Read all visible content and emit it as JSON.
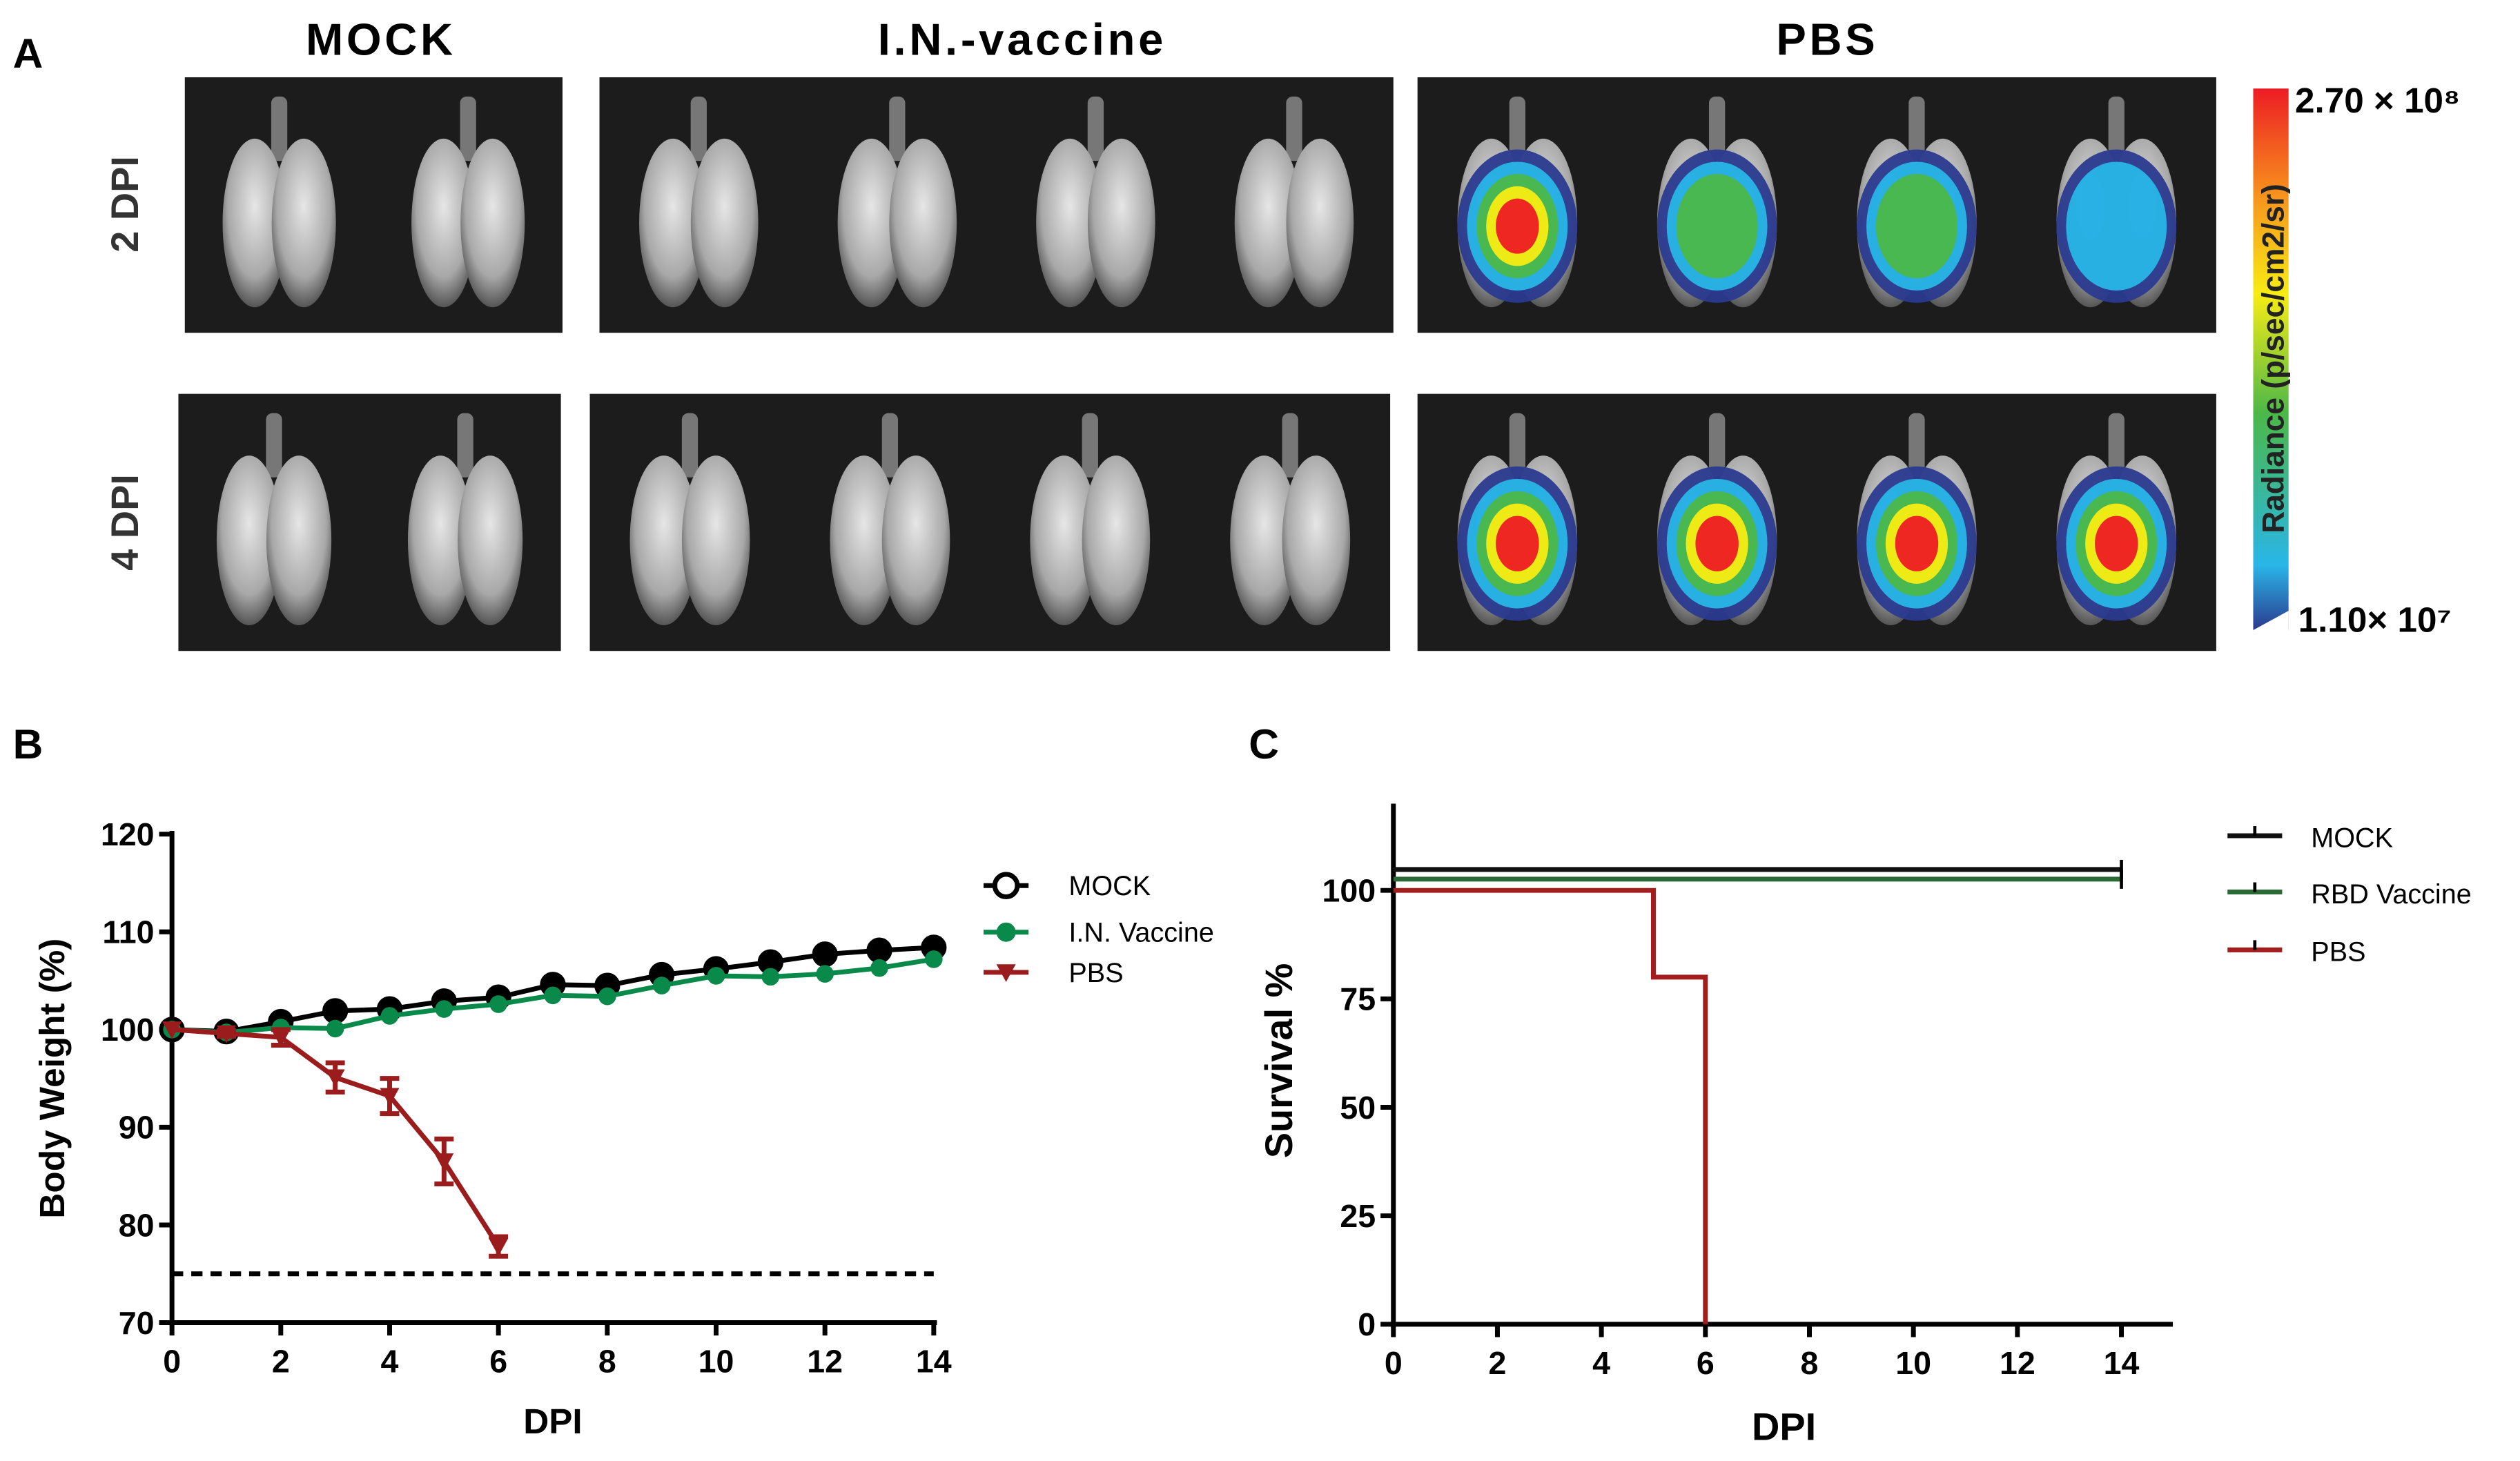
{
  "panel_a": {
    "label": "A",
    "columns": [
      "MOCK",
      "I.N.-vaccine",
      "PBS"
    ],
    "rows": [
      "2 DPI",
      "4 DPI"
    ],
    "colorbar": {
      "label": "Radiance (p/sec/cm2/sr)",
      "max_label": "2.70 × 10⁸",
      "min_label": "1.10× 10⁷",
      "colors": [
        "#2b3a8f",
        "#29b6e8",
        "#4cb848",
        "#f7ec13",
        "#f7941d",
        "#ed1c24"
      ]
    },
    "signal_levels": {
      "2 DPI": {
        "MOCK": [
          0,
          0
        ],
        "I.N.-vaccine": [
          0,
          0,
          0,
          0
        ],
        "PBS": [
          1.0,
          0.55,
          0.4,
          0.35
        ]
      },
      "4 DPI": {
        "MOCK": [
          0,
          0
        ],
        "I.N.-vaccine": [
          0,
          0,
          0,
          0
        ],
        "PBS": [
          0.95,
          1.0,
          0.9,
          0.9
        ]
      }
    }
  },
  "chart_data": [
    {
      "panel_label": "B",
      "type": "line",
      "xlabel": "DPI",
      "ylabel": "Body Weight (%)",
      "xlim": [
        0,
        14
      ],
      "ylim": [
        70,
        120
      ],
      "xticks": [
        0,
        2,
        4,
        6,
        8,
        10,
        12,
        14
      ],
      "yticks": [
        70,
        80,
        90,
        100,
        110,
        120
      ],
      "grid": false,
      "legend_position": "top-right outside",
      "threshold": {
        "y": 75,
        "x": [
          0,
          14
        ],
        "style": "dashed"
      },
      "series": [
        {
          "name": "MOCK",
          "color": "#000000",
          "marker": "open-circle",
          "x": [
            0,
            1,
            2,
            3,
            4,
            5,
            6,
            7,
            8,
            9,
            10,
            11,
            12,
            13,
            14
          ],
          "y": [
            100,
            99.8,
            100.8,
            101.9,
            102.1,
            102.9,
            103.3,
            104.6,
            104.5,
            105.6,
            106.2,
            106.9,
            107.7,
            108.1,
            108.4
          ]
        },
        {
          "name": "I.N. Vaccine",
          "color": "#0a8a4a",
          "marker": "filled-circle",
          "x": [
            0,
            1,
            2,
            3,
            4,
            5,
            6,
            7,
            8,
            9,
            10,
            11,
            12,
            13,
            14
          ],
          "y": [
            100,
            99.7,
            100.2,
            100.1,
            101.4,
            102.1,
            102.6,
            103.5,
            103.4,
            104.5,
            105.5,
            105.4,
            105.7,
            106.3,
            107.2
          ]
        },
        {
          "name": "PBS",
          "color": "#9b1c1c",
          "marker": "down-triangle",
          "x": [
            0,
            1,
            2,
            3,
            4,
            5,
            6
          ],
          "y": [
            100,
            99.6,
            99.2,
            95.1,
            93.2,
            86.5,
            77.8
          ],
          "error": [
            0,
            0.3,
            0.8,
            1.5,
            1.8,
            2.3,
            1.0
          ]
        }
      ]
    },
    {
      "panel_label": "C",
      "type": "line",
      "subtype": "survival-step",
      "xlabel": "DPI",
      "ylabel": "Survival %",
      "xlim": [
        0,
        15
      ],
      "ylim": [
        0,
        120
      ],
      "xticks": [
        0,
        2,
        4,
        6,
        8,
        10,
        12,
        14
      ],
      "yticks": [
        0,
        25,
        50,
        75,
        100
      ],
      "grid": false,
      "legend_position": "top-right outside",
      "series": [
        {
          "name": "MOCK",
          "color": "#111111",
          "x": [
            0,
            14
          ],
          "y": [
            100,
            100
          ]
        },
        {
          "name": "RBD Vaccine",
          "color": "#2a6a35",
          "x": [
            0,
            14
          ],
          "y": [
            100,
            100
          ]
        },
        {
          "name": "PBS",
          "color": "#a31d1d",
          "x": [
            0,
            5,
            6
          ],
          "y": [
            100,
            80,
            0
          ]
        }
      ]
    }
  ]
}
